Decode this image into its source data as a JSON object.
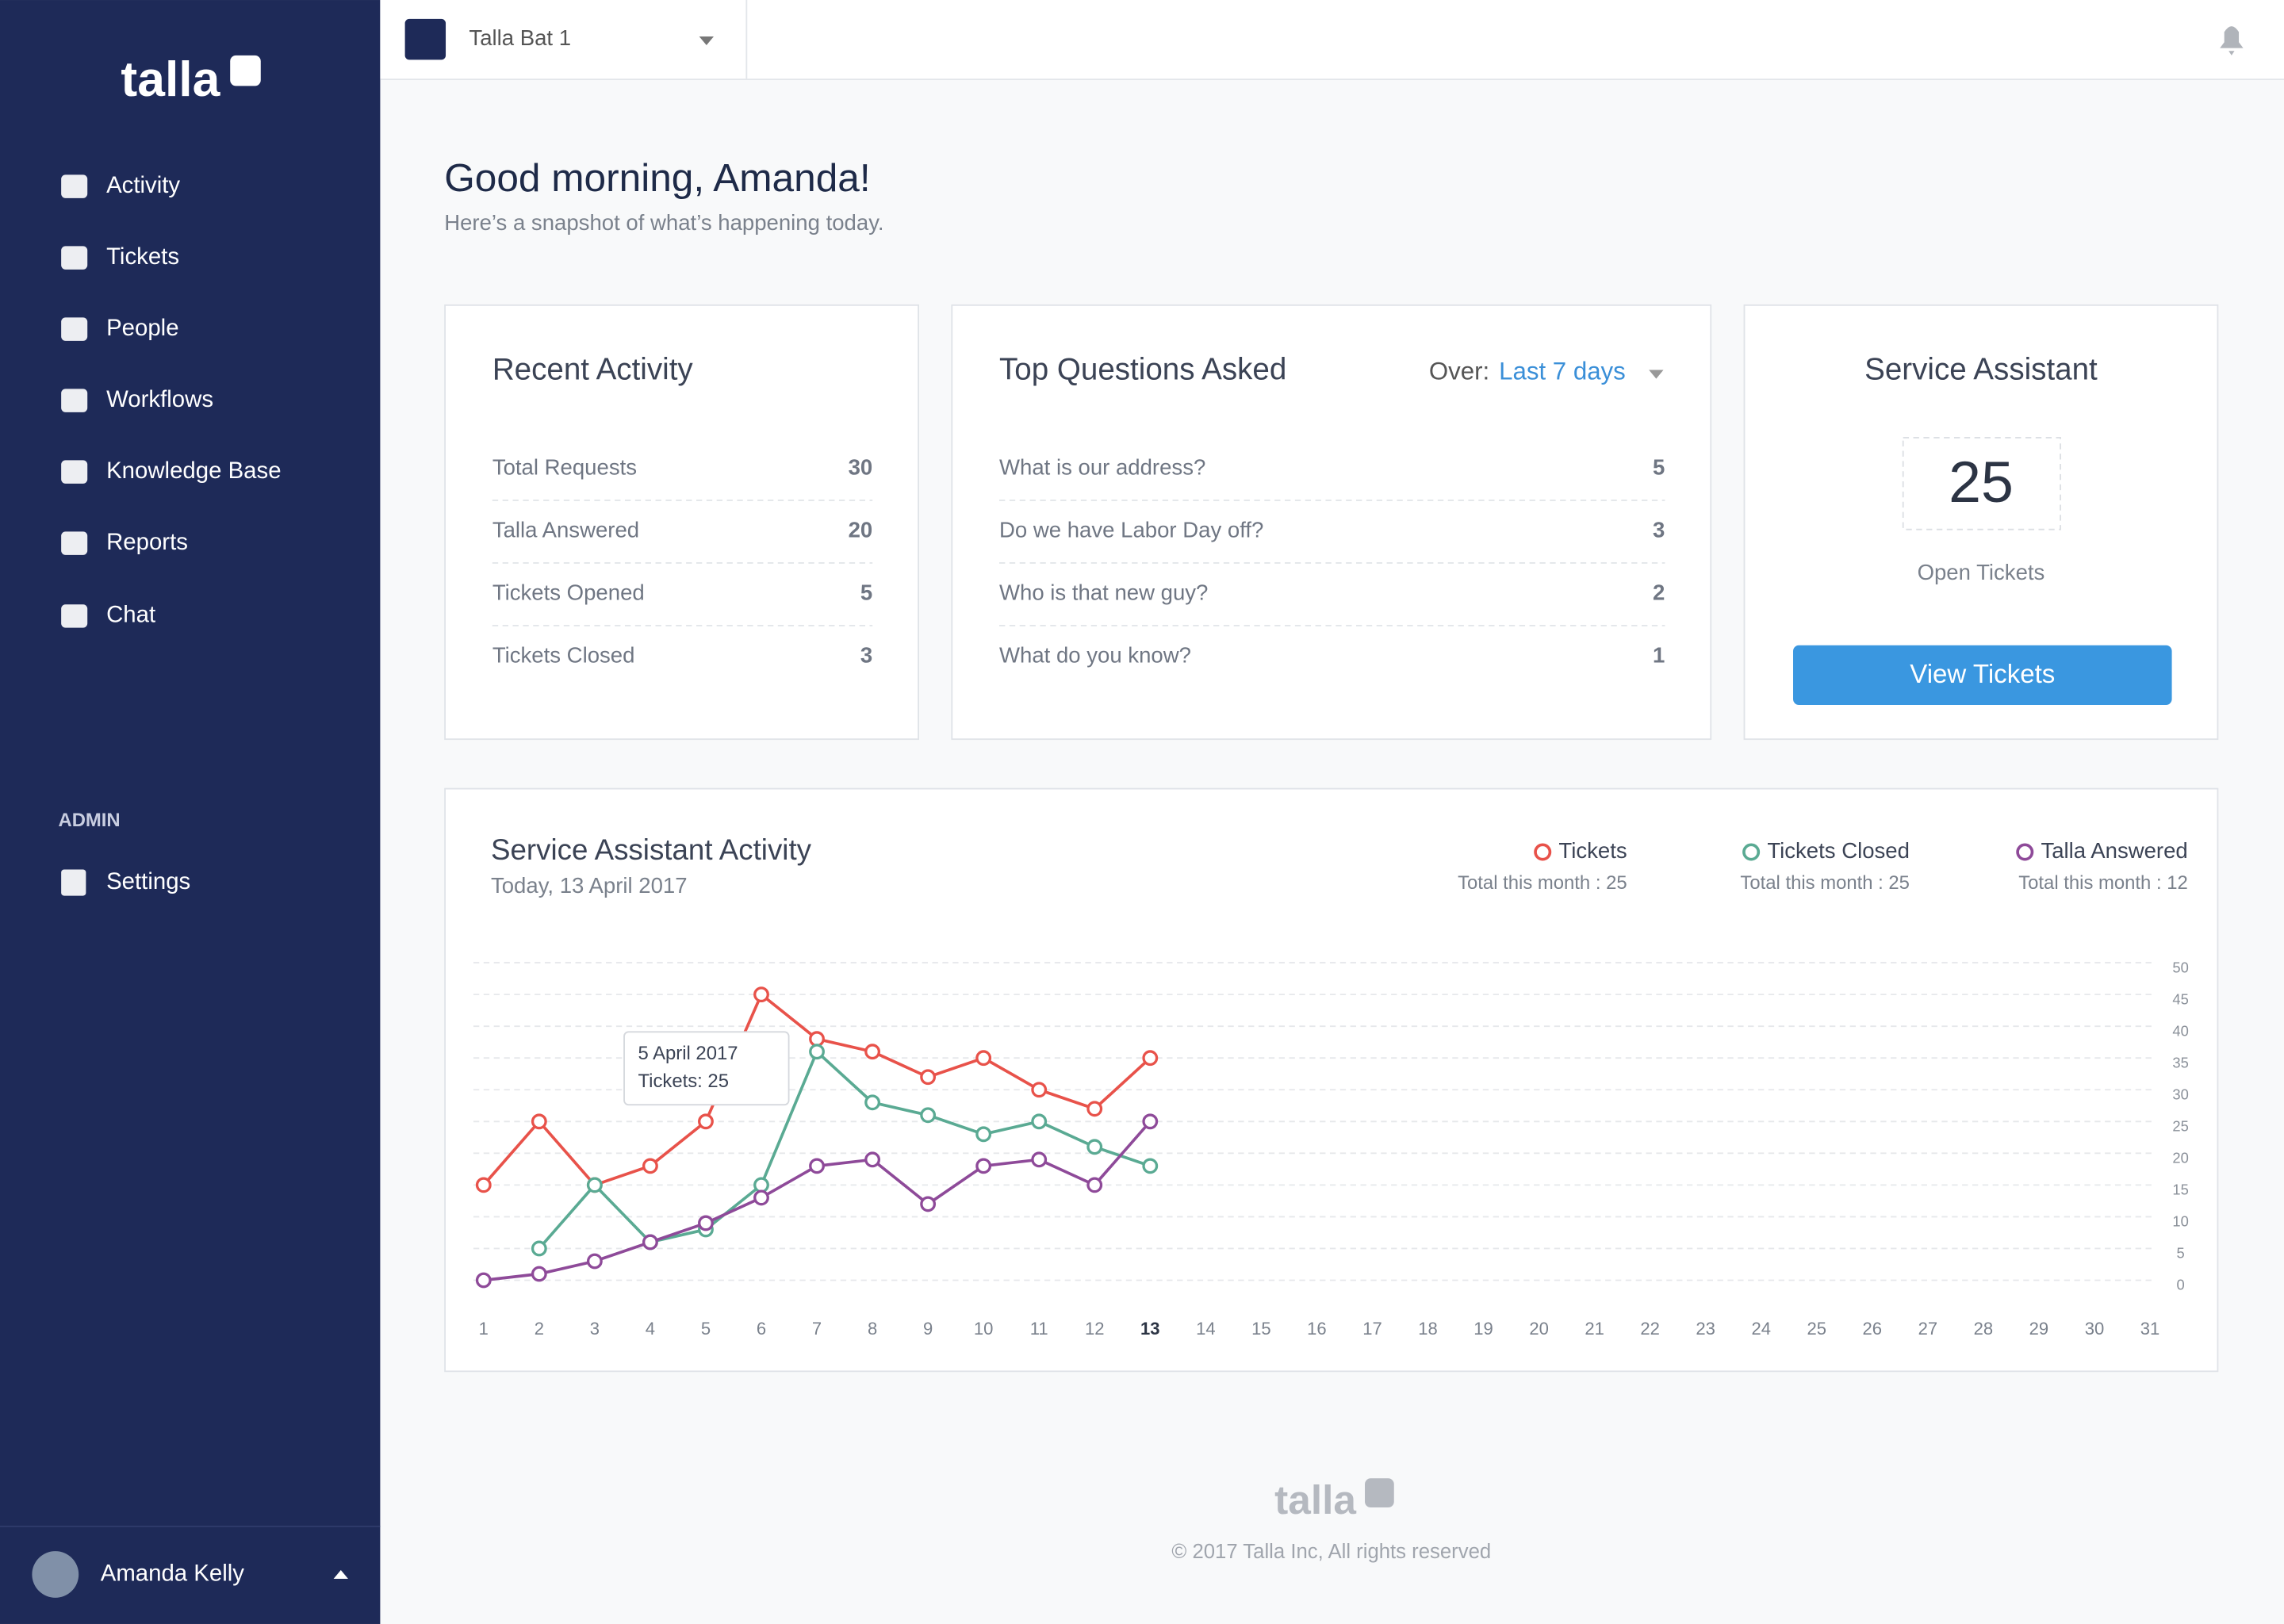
{
  "sidebar": {
    "logo": "talla",
    "nav": [
      "Activity",
      "Tickets",
      "People",
      "Workflows",
      "Knowledge Base",
      "Reports",
      "Chat"
    ],
    "admin_heading": "ADMIN",
    "admin_nav": [
      "Settings"
    ],
    "user": "Amanda Kelly"
  },
  "header": {
    "workspace": "Talla Bat 1"
  },
  "greeting": {
    "title": "Good morning, Amanda!",
    "subtitle": "Here’s a snapshot of what’s happening today."
  },
  "recent_activity": {
    "title": "Recent Activity",
    "rows": [
      {
        "label": "Total Requests",
        "value": 30
      },
      {
        "label": "Talla Answered",
        "value": 20
      },
      {
        "label": "Tickets Opened",
        "value": 5
      },
      {
        "label": "Tickets Closed",
        "value": 3
      }
    ]
  },
  "top_questions": {
    "title": "Top Questions Asked",
    "filter_label": "Over:",
    "filter_value": "Last 7 days",
    "rows": [
      {
        "label": "What is our address?",
        "value": 5
      },
      {
        "label": "Do we have Labor Day off?",
        "value": 3
      },
      {
        "label": "Who is that new guy?",
        "value": 2
      },
      {
        "label": "What do you know?",
        "value": 1
      }
    ]
  },
  "service_assistant": {
    "title": "Service Assistant",
    "value": 25,
    "label": "Open Tickets",
    "button": "View Tickets"
  },
  "chart_data": {
    "type": "line",
    "title": "Service Assistant Activity",
    "subtitle": "Today, 13 April 2017",
    "categories": [
      1,
      2,
      3,
      4,
      5,
      6,
      7,
      8,
      9,
      10,
      11,
      12,
      13,
      14,
      15,
      16,
      17,
      18,
      19,
      20,
      21,
      22,
      23,
      24,
      25,
      26,
      27,
      28,
      29,
      30,
      31
    ],
    "highlight_category": 13,
    "series": [
      {
        "name": "Tickets",
        "color": "#e8524a",
        "total_label": "Total this month : 25",
        "values": [
          15,
          25,
          15,
          18,
          25,
          45,
          38,
          36,
          32,
          35,
          30,
          27,
          35,
          null,
          null,
          null,
          null,
          null,
          null,
          null,
          null,
          null,
          null,
          null,
          null,
          null,
          null,
          null,
          null,
          null,
          null
        ]
      },
      {
        "name": "Tickets Closed",
        "color": "#5aaa93",
        "total_label": "Total this month : 25",
        "values": [
          null,
          5,
          15,
          6,
          8,
          15,
          36,
          28,
          26,
          23,
          25,
          21,
          18,
          null,
          null,
          null,
          null,
          null,
          null,
          null,
          null,
          null,
          null,
          null,
          null,
          null,
          null,
          null,
          null,
          null,
          null
        ]
      },
      {
        "name": "Talla Answered",
        "color": "#8e4a99",
        "total_label": "Total this month : 12",
        "values": [
          0,
          1,
          3,
          6,
          9,
          13,
          18,
          19,
          12,
          18,
          19,
          15,
          25,
          null,
          null,
          null,
          null,
          null,
          null,
          null,
          null,
          null,
          null,
          null,
          null,
          null,
          null,
          null,
          null,
          null,
          null
        ]
      }
    ],
    "ylim": [
      0,
      50
    ],
    "yticks": [
      0,
      5,
      10,
      15,
      20,
      25,
      30,
      35,
      40,
      45,
      50
    ],
    "grid": true,
    "tooltip": {
      "title": "5 April 2017",
      "text": "Tickets: 25"
    }
  },
  "footer": {
    "logo": "talla",
    "copyright": "© 2017  Talla Inc,  All rights reserved"
  }
}
